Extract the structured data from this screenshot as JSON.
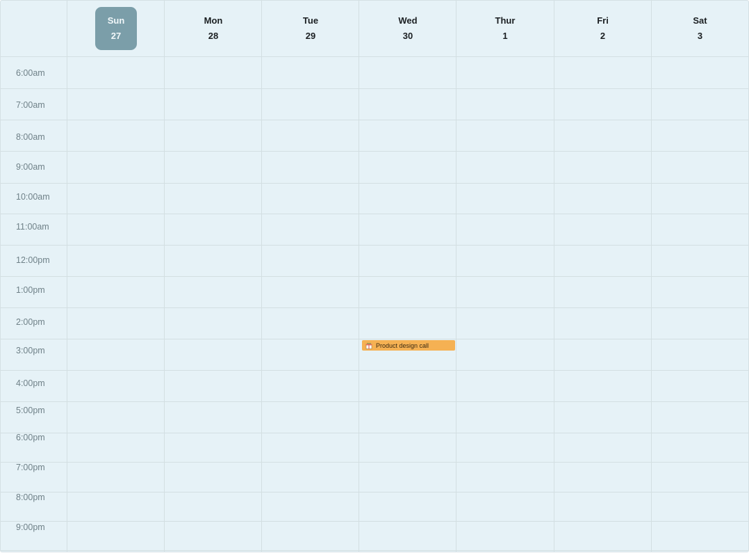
{
  "days": [
    {
      "dow": "Sun",
      "date": "27",
      "active": true
    },
    {
      "dow": "Mon",
      "date": "28"
    },
    {
      "dow": "Tue",
      "date": "29"
    },
    {
      "dow": "Wed",
      "date": "30"
    },
    {
      "dow": "Thur",
      "date": "1"
    },
    {
      "dow": "Fri",
      "date": "2"
    },
    {
      "dow": "Sat",
      "date": "3"
    }
  ],
  "times": [
    "6:00am",
    "7:00am",
    "8:00am",
    "9:00am",
    "10:00am",
    "11:00am",
    "12:00pm",
    "1:00pm",
    "2:00pm",
    "3:00pm",
    "4:00pm",
    "5:00pm",
    "6:00pm",
    "7:00pm",
    "8:00pm",
    "9:00pm"
  ],
  "events": [
    {
      "title": "Product design call",
      "icon": "gift-icon",
      "color": "#f5b153",
      "day": "Wed",
      "time": "3:00pm"
    }
  ],
  "colors": {
    "active_day": "#7b9ea9",
    "grid_bg": "#e6f2f7",
    "event": "#f5b153"
  }
}
